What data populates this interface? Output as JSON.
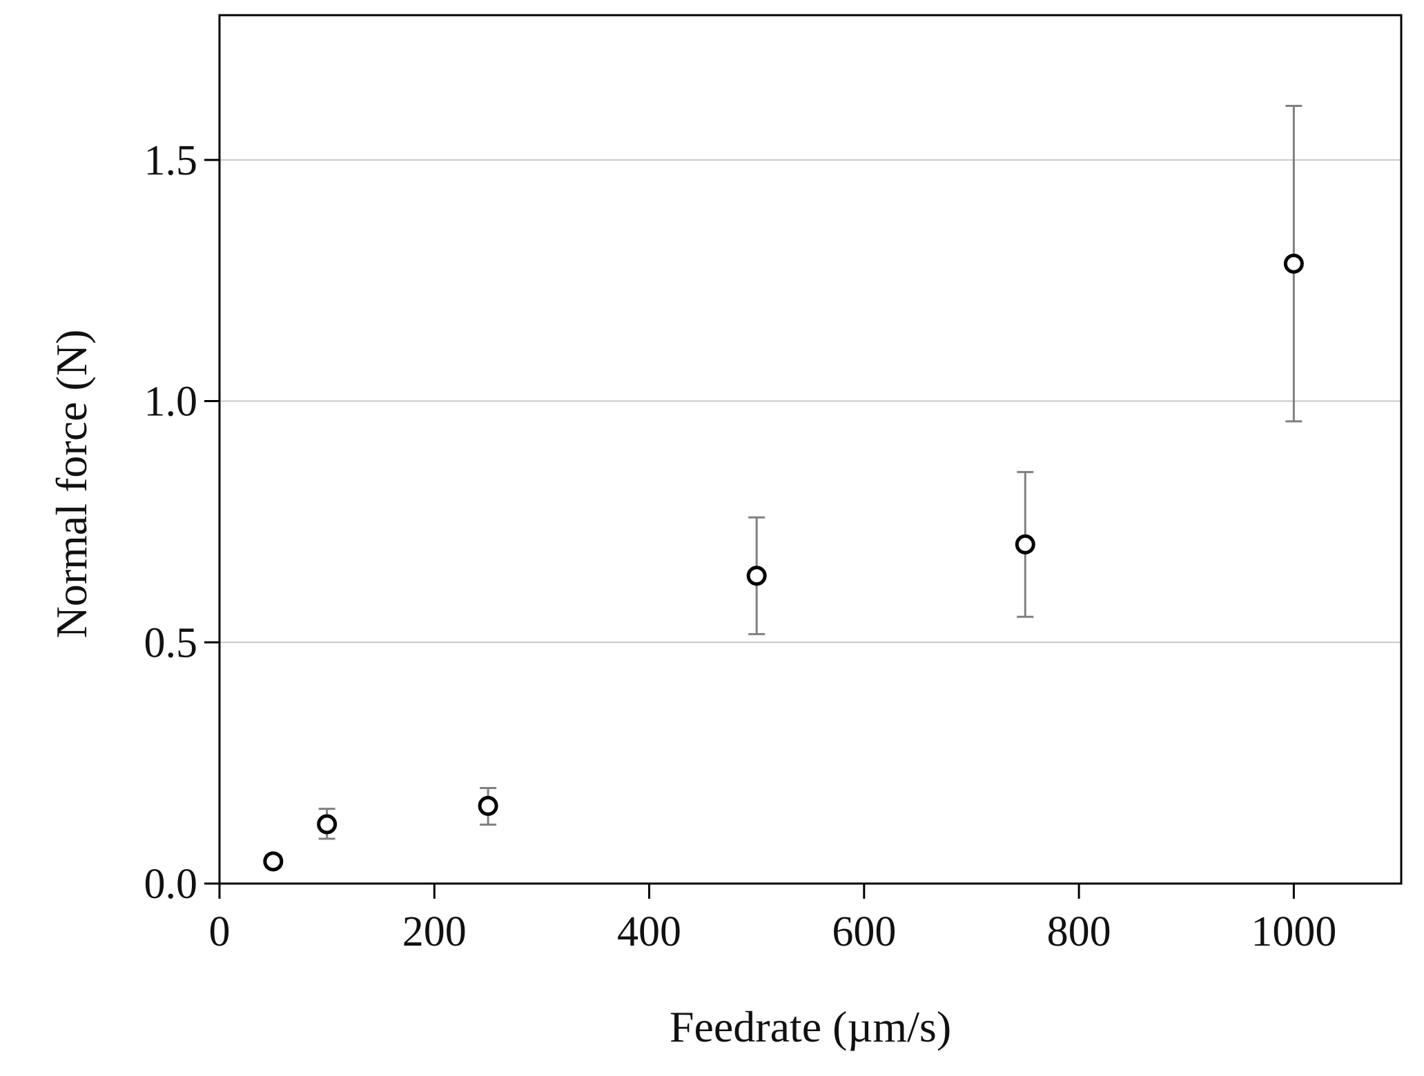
{
  "chart_data": {
    "type": "scatter",
    "xlabel": "Feedrate (µm/s)",
    "ylabel": "Normal force (N)",
    "xlim": [
      0,
      1100
    ],
    "ylim": [
      0,
      1.8
    ],
    "x_ticks": [
      0,
      200,
      400,
      600,
      800,
      1000
    ],
    "x_tick_labels": [
      "0",
      "200",
      "400",
      "600",
      "800",
      "1000"
    ],
    "y_ticks": [
      0.0,
      0.5,
      1.0,
      1.5
    ],
    "y_tick_labels": [
      "0.0",
      "0.5",
      "1.0",
      "1.5"
    ],
    "grid": "horizontal",
    "legend": "none",
    "colors": {
      "marker_edge": "#000000",
      "marker_fill": "#ffffff",
      "error_bar": "#808080",
      "grid": "#c8c8c8",
      "axes": "#000000"
    },
    "series": [
      {
        "points": [
          {
            "x": 50,
            "y": 0.046,
            "err_low": 0.034,
            "err_high": 0.058
          },
          {
            "x": 100,
            "y": 0.123,
            "err_low": 0.093,
            "err_high": 0.155
          },
          {
            "x": 250,
            "y": 0.161,
            "err_low": 0.122,
            "err_high": 0.198
          },
          {
            "x": 500,
            "y": 0.638,
            "err_low": 0.517,
            "err_high": 0.759
          },
          {
            "x": 750,
            "y": 0.703,
            "err_low": 0.553,
            "err_high": 0.853
          },
          {
            "x": 1000,
            "y": 1.285,
            "err_low": 0.958,
            "err_high": 1.612
          }
        ]
      }
    ]
  }
}
